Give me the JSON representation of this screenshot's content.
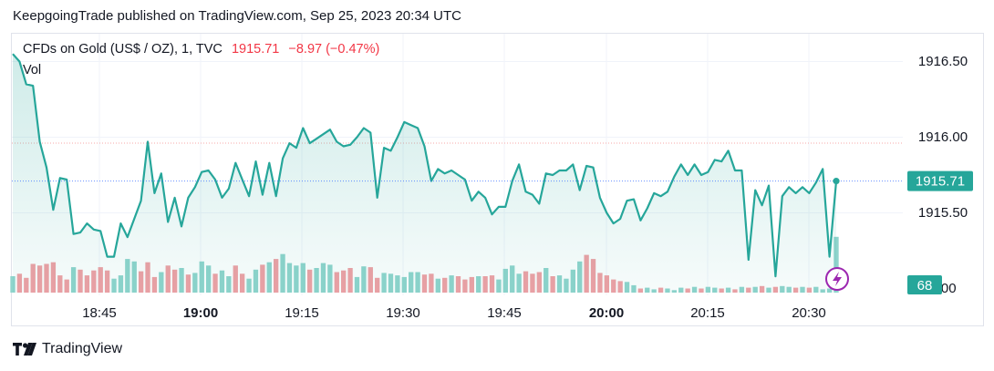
{
  "header": {
    "published": "KeepgoingTrade published on TradingView.com, Sep 25, 2023 20:34 UTC"
  },
  "legend": {
    "symbol": "CFDs on Gold (US$ / OZ), 1, TVC",
    "price": "1915.71",
    "change": "−8.97 (−0.47%)",
    "volume_label": "Vol"
  },
  "price_axis": {
    "ticks": [
      "1916.50",
      "1916.00",
      "1915.50",
      "5.00"
    ],
    "last_price_tag": "1915.71",
    "volume_tag": "68"
  },
  "colors": {
    "line": "#26a69a",
    "up_volume": "#8fd4cc",
    "down_volume": "#f0a0a4",
    "change_text": "#f23645",
    "flash_icon": "#9c27b0"
  },
  "icons": {
    "flash": "flash-icon",
    "logo": "tradingview-logo-icon"
  },
  "brand": {
    "name": "TradingView"
  },
  "chart_data": {
    "type": "line",
    "title": "CFDs on Gold (US$ / OZ), 1, TVC",
    "interval": "1 minute",
    "x_tick_labels": [
      "18:45",
      "19:00",
      "19:15",
      "19:30",
      "19:45",
      "20:00",
      "20:15",
      "20:30"
    ],
    "x_tick_bold": [
      false,
      true,
      false,
      false,
      false,
      true,
      false,
      false
    ],
    "y_tick_values": [
      1916.5,
      1916.0,
      1915.5
    ],
    "ylim": [
      1915.0,
      1916.65
    ],
    "last_value": 1915.71,
    "series": [
      {
        "kind": "price",
        "values": [
          1916.55,
          1916.5,
          1916.35,
          1916.34,
          1915.97,
          1915.8,
          1915.52,
          1915.73,
          1915.72,
          1915.36,
          1915.37,
          1915.43,
          1915.39,
          1915.38,
          1915.21,
          1915.21,
          1915.43,
          1915.34,
          1915.46,
          1915.58,
          1915.97,
          1915.63,
          1915.76,
          1915.44,
          1915.6,
          1915.41,
          1915.6,
          1915.67,
          1915.77,
          1915.78,
          1915.72,
          1915.6,
          1915.66,
          1915.83,
          1915.72,
          1915.61,
          1915.84,
          1915.62,
          1915.83,
          1915.61,
          1915.86,
          1915.96,
          1915.93,
          1916.06,
          1915.96,
          1915.99,
          1916.02,
          1916.05,
          1915.97,
          1915.94,
          1915.95,
          1916.0,
          1916.06,
          1916.03,
          1915.6,
          1915.93,
          1915.91,
          1916.0,
          1916.1,
          1916.08,
          1916.06,
          1915.94,
          1915.71,
          1915.79,
          1915.76,
          1915.78,
          1915.75,
          1915.72,
          1915.58,
          1915.64,
          1915.6,
          1915.49,
          1915.54,
          1915.54,
          1915.71,
          1915.82,
          1915.64,
          1915.62,
          1915.56,
          1915.76,
          1915.75,
          1915.78,
          1915.78,
          1915.82,
          1915.65,
          1915.81,
          1915.8,
          1915.6,
          1915.5,
          1915.43,
          1915.46,
          1915.58,
          1915.59,
          1915.45,
          1915.53,
          1915.63,
          1915.61,
          1915.64,
          1915.74,
          1915.82,
          1915.75,
          1915.82,
          1915.75,
          1915.77,
          1915.85,
          1915.84,
          1915.91,
          1915.78,
          1915.78,
          1915.19,
          1915.65,
          1915.55,
          1915.68,
          1915.08,
          1915.61,
          1915.67,
          1915.63,
          1915.67,
          1915.63,
          1915.7,
          1915.79,
          1915.21,
          1915.71
        ]
      },
      {
        "kind": "volume",
        "values": [
          20,
          23,
          18,
          35,
          33,
          35,
          37,
          21,
          16,
          31,
          28,
          21,
          27,
          31,
          27,
          17,
          21,
          41,
          38,
          26,
          37,
          19,
          25,
          33,
          28,
          30,
          22,
          24,
          38,
          33,
          23,
          27,
          20,
          33,
          23,
          17,
          28,
          34,
          37,
          41,
          47,
          36,
          33,
          36,
          28,
          30,
          36,
          34,
          25,
          27,
          30,
          19,
          32,
          31,
          18,
          24,
          23,
          21,
          19,
          25,
          25,
          22,
          23,
          17,
          18,
          21,
          20,
          16,
          19,
          20,
          20,
          21,
          16,
          29,
          33,
          23,
          26,
          23,
          25,
          30,
          20,
          21,
          17,
          28,
          38,
          46,
          41,
          24,
          21,
          16,
          14,
          13,
          9,
          5,
          6,
          4,
          6,
          5,
          3,
          6,
          5,
          7,
          5,
          7,
          6,
          5,
          6,
          4,
          7,
          6,
          7,
          8,
          6,
          7,
          8,
          7,
          6,
          7,
          6,
          7,
          4,
          5,
          68
        ],
        "up": [
          1,
          0,
          0,
          0,
          0,
          0,
          0,
          0,
          0,
          1,
          0,
          0,
          0,
          0,
          0,
          1,
          1,
          1,
          1,
          0,
          0,
          0,
          1,
          0,
          0,
          1,
          0,
          1,
          1,
          1,
          0,
          1,
          1,
          0,
          0,
          1,
          1,
          0,
          1,
          0,
          1,
          1,
          1,
          1,
          0,
          1,
          1,
          1,
          0,
          0,
          0,
          1,
          1,
          0,
          0,
          1,
          1,
          1,
          1,
          1,
          1,
          0,
          0,
          1,
          0,
          1,
          0,
          0,
          0,
          1,
          0,
          0,
          1,
          1,
          1,
          1,
          0,
          0,
          0,
          1,
          0,
          1,
          1,
          1,
          1,
          0,
          0,
          0,
          0,
          0,
          0,
          1,
          1,
          0,
          1,
          1,
          0,
          1,
          1,
          1,
          0,
          1,
          0,
          1,
          1,
          0,
          1,
          0,
          1,
          0,
          1,
          0,
          1,
          0,
          1,
          1,
          0,
          1,
          0,
          1,
          1,
          1,
          1
        ]
      }
    ],
    "grid": true
  }
}
